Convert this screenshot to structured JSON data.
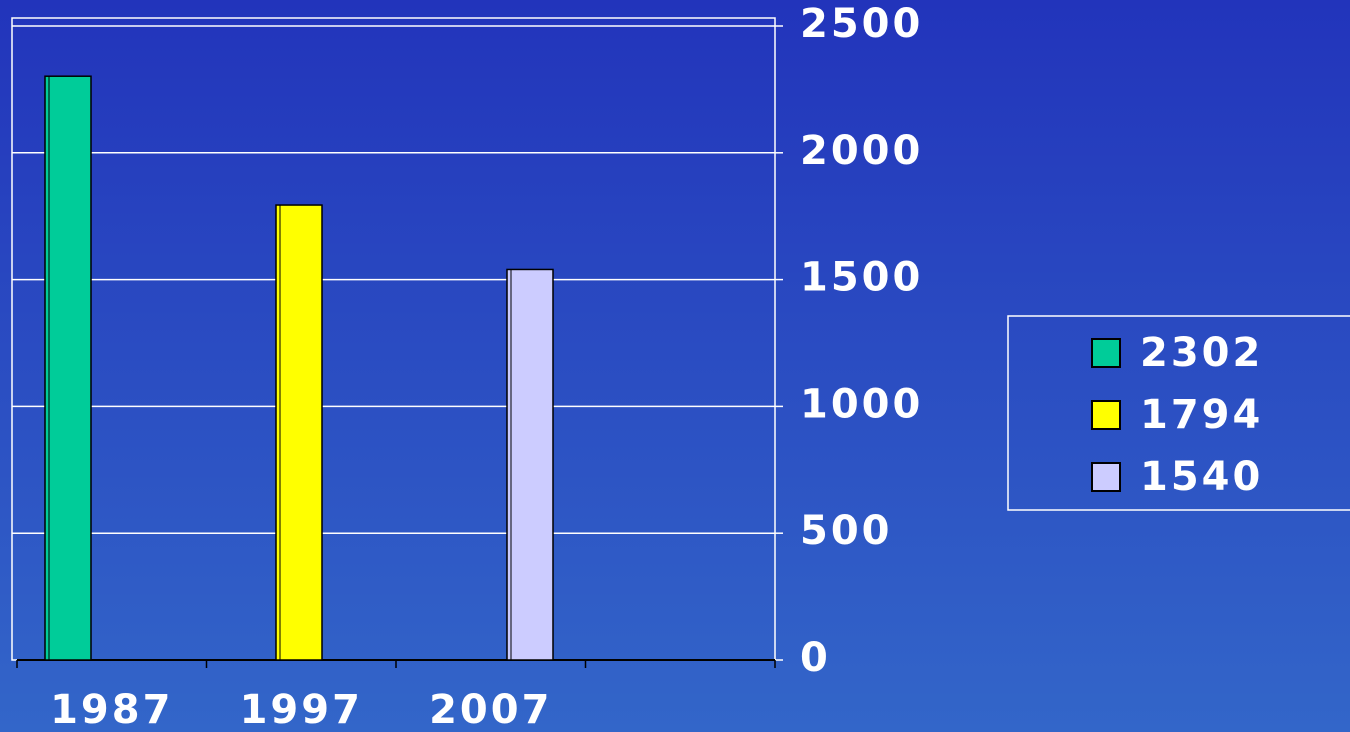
{
  "chart_data": {
    "type": "bar",
    "categories": [
      "1987",
      "1997",
      "2007",
      null
    ],
    "series": [
      {
        "name": "2302",
        "color": "#00cc99",
        "values": [
          2302,
          null,
          null,
          null
        ]
      },
      {
        "name": "1794",
        "color": "#ffff00",
        "values": [
          null,
          1794,
          null,
          null
        ]
      },
      {
        "name": "1540",
        "color": "#ccccff",
        "values": [
          null,
          null,
          1540,
          null
        ]
      }
    ],
    "ylim": [
      0,
      2500
    ],
    "yticks": [
      0,
      500,
      1000,
      1500,
      2000,
      2500
    ],
    "grid": true,
    "legend": "right"
  }
}
